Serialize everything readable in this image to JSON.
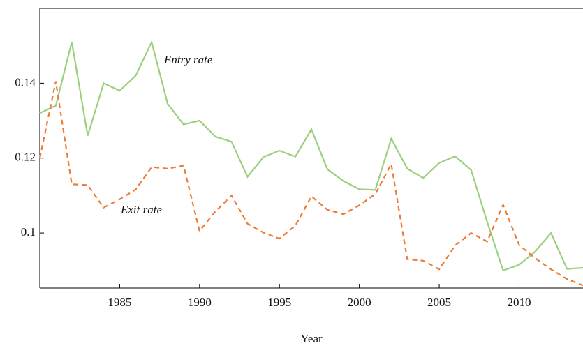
{
  "chart_data": {
    "type": "line",
    "x_label": "Year",
    "x": [
      1980,
      1981,
      1982,
      1983,
      1984,
      1985,
      1986,
      1987,
      1988,
      1989,
      1990,
      1991,
      1992,
      1993,
      1994,
      1995,
      1996,
      1997,
      1998,
      1999,
      2000,
      2001,
      2002,
      2003,
      2004,
      2005,
      2006,
      2007,
      2008,
      2009,
      2010,
      2011,
      2012,
      2013,
      2014
    ],
    "series": [
      {
        "name": "Entry rate",
        "color": "#9ccf7e",
        "dashed": false,
        "values": [
          0.132,
          0.134,
          0.151,
          0.126,
          0.14,
          0.138,
          0.142,
          0.151,
          0.1345,
          0.129,
          0.13,
          0.1257,
          0.1244,
          0.115,
          0.1203,
          0.122,
          0.1204,
          0.1277,
          0.117,
          0.1139,
          0.1117,
          0.1115,
          0.1252,
          0.1172,
          0.1147,
          0.1187,
          0.1205,
          0.1168,
          0.103,
          0.09,
          0.0915,
          0.095,
          0.1,
          0.0904,
          0.0907
        ]
      },
      {
        "name": "Exit rate",
        "color": "#ee7a33",
        "dashed": true,
        "values": [
          0.12,
          0.1405,
          0.113,
          0.1128,
          0.1068,
          0.109,
          0.1116,
          0.1176,
          0.1172,
          0.118,
          0.1005,
          0.1058,
          0.11,
          0.1025,
          0.1001,
          0.0985,
          0.102,
          0.1098,
          0.1062,
          0.105,
          0.1074,
          0.1104,
          0.1184,
          0.093,
          0.0926,
          0.0903,
          0.0967,
          0.1,
          0.0977,
          0.1075,
          0.0968,
          0.0933,
          0.0903,
          0.0877,
          0.086
        ]
      }
    ],
    "xlim": [
      1980,
      2014
    ],
    "xticks": [
      1985,
      1990,
      1995,
      2000,
      2005,
      2010
    ],
    "ylim": [
      0.0853,
      0.16
    ],
    "yticks": [
      0.1,
      0.12,
      0.14
    ],
    "grid": false
  }
}
